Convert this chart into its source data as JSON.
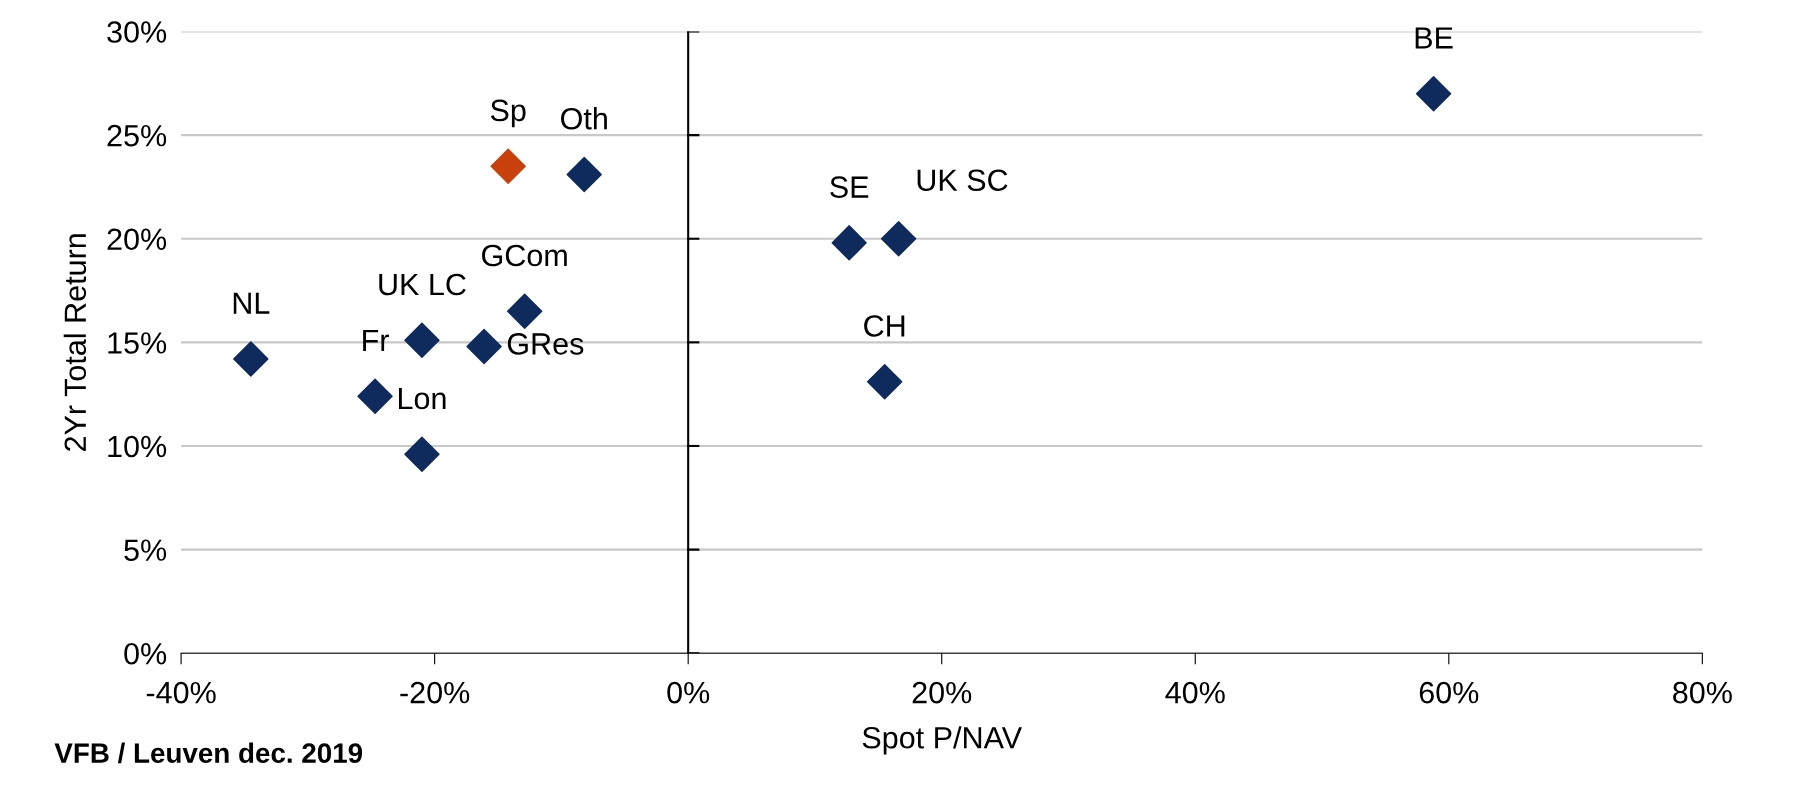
{
  "chart_data": {
    "type": "scatter",
    "xlabel": "Spot P/NAV",
    "ylabel": "2Yr Total Return",
    "xlim": [
      -40,
      80
    ],
    "ylim": [
      0,
      30
    ],
    "xticks": [
      {
        "value": -40,
        "label": "-40%"
      },
      {
        "value": -20,
        "label": "-20%"
      },
      {
        "value": 0,
        "label": "0%"
      },
      {
        "value": 20,
        "label": "20%"
      },
      {
        "value": 40,
        "label": "40%"
      },
      {
        "value": 60,
        "label": "60%"
      },
      {
        "value": 80,
        "label": "80%"
      }
    ],
    "yticks": [
      {
        "value": 0,
        "label": "0%"
      },
      {
        "value": 5,
        "label": "5%"
      },
      {
        "value": 10,
        "label": "10%"
      },
      {
        "value": 15,
        "label": "15%"
      },
      {
        "value": 20,
        "label": "20%"
      },
      {
        "value": 25,
        "label": "25%"
      },
      {
        "value": 30,
        "label": "30%"
      }
    ],
    "grid": "y",
    "marker": "diamond",
    "legend": false,
    "series": [
      {
        "color": "#0f2a5c",
        "x": [
          -34.5,
          -24.7,
          -21.0,
          -21.0,
          -16.1,
          -12.9,
          -8.2,
          12.7,
          16.6,
          15.5,
          58.8
        ],
        "values": [
          14.2,
          12.4,
          9.6,
          15.1,
          14.8,
          16.5,
          23.1,
          19.8,
          20.0,
          13.1,
          27.0
        ]
      },
      {
        "color": "#c8410c",
        "x": [
          -14.2
        ],
        "values": [
          23.5
        ]
      }
    ],
    "annotations": [
      {
        "text": "NL",
        "x": -34.5,
        "y": 14.2
      },
      {
        "text": "Fr",
        "x": -24.7,
        "y": 12.4
      },
      {
        "text": "Lon",
        "x": -21.0,
        "y": 9.6
      },
      {
        "text": "UK LC",
        "x": -21.0,
        "y": 15.1
      },
      {
        "text": "GRes",
        "x": -16.1,
        "y": 14.8
      },
      {
        "text": "GCom",
        "x": -12.9,
        "y": 16.5
      },
      {
        "text": "Sp",
        "x": -14.2,
        "y": 23.5
      },
      {
        "text": "Oth",
        "x": -8.2,
        "y": 23.1
      },
      {
        "text": "SE",
        "x": 12.7,
        "y": 19.8
      },
      {
        "text": "UK SC",
        "x": 16.6,
        "y": 20.0
      },
      {
        "text": "CH",
        "x": 15.5,
        "y": 13.1
      },
      {
        "text": "BE",
        "x": 58.8,
        "y": 27.0
      },
      "VFB / Leuven dec. 2019"
    ]
  }
}
